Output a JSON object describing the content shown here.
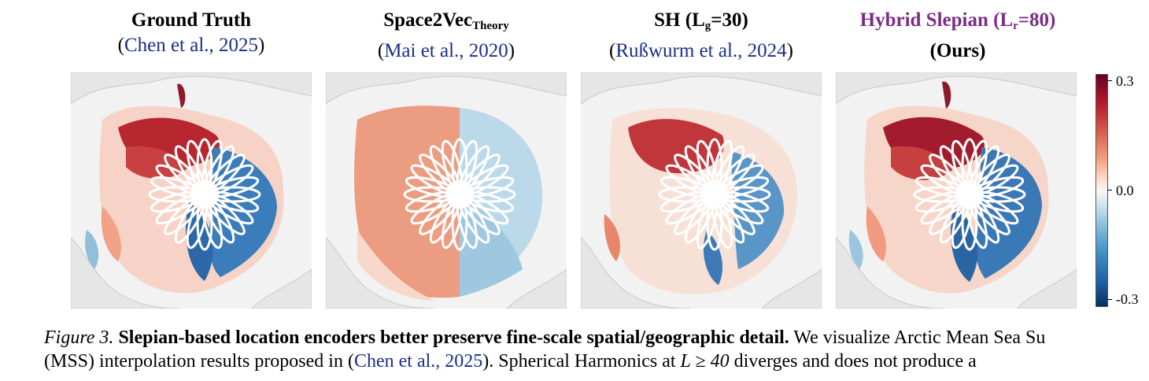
{
  "panels": [
    {
      "title_main": "Ground Truth",
      "cite_open": "(",
      "cite_text": "Chen et al., 2025",
      "cite_close": ")"
    },
    {
      "title_main": "Space2Vec",
      "title_sub": "Theory",
      "cite_open": "(",
      "cite_text": "Mai et al., 2020",
      "cite_close": ")"
    },
    {
      "title_pre": "SH (L",
      "title_sub": "g",
      "title_post": "=30)",
      "cite_open": "(",
      "cite_text": "Rußwurm et al., 2024",
      "cite_close": ")"
    },
    {
      "title_pre": "Hybrid Slepian (L",
      "title_sub": "r",
      "title_post": "=80)",
      "line2": "(Ours)"
    }
  ],
  "colorbar": {
    "ticks": [
      "0.3",
      "0.0",
      "-0.3"
    ],
    "colormap": "RdBu_r"
  },
  "caption": {
    "fig_label": "Figure 3.",
    "bold_text": "Slepian-based location encoders better preserve fine-scale spatial/geographic detail.",
    "line1_rest": "We visualize Arctic Mean Sea Su",
    "line2_a": "(MSS) interpolation results proposed in (",
    "line2_cite": "Chen et al., 2025",
    "line2_b": ").  Spherical Harmonics at ",
    "line2_math": "L ≥ 40",
    "line2_c": " diverges and does not produce a"
  },
  "colors": {
    "title_purple": "#7b2d86",
    "citation_blue": "#1a2f8a"
  }
}
